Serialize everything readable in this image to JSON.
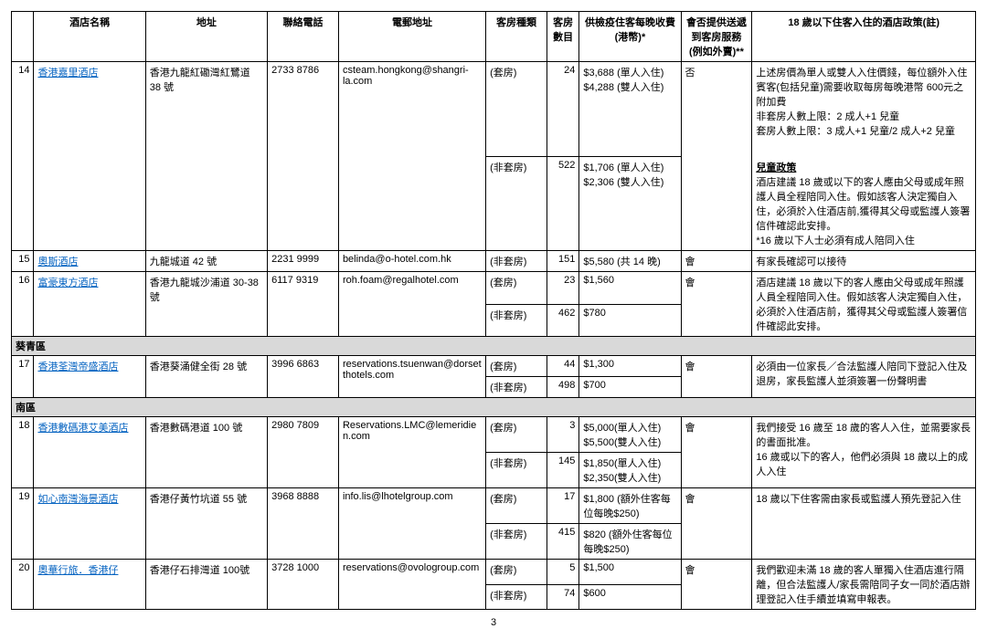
{
  "headers": {
    "num": "",
    "name": "酒店名稱",
    "address": "地址",
    "phone": "聯絡電話",
    "email": "電郵地址",
    "roomtype": "客房種類",
    "roomcount": "客房數目",
    "fee": "供檢疫住客每晚收費(港幣)*",
    "delivery": "會否提供送遞到客房服務(例如外賣)**",
    "policy": "18 歲以下住客入住的酒店政策(註)"
  },
  "districts": {
    "kwaitsing": "葵青區",
    "southern": "南區"
  },
  "rows": [
    {
      "num": "14",
      "name": "香港嘉里酒店",
      "address": "香港九龍紅磡灣紅鷺道 38 號",
      "phone": "2733 8786",
      "email": "csteam.hongkong@shangri-la.com",
      "roomtype1": "(套房)",
      "roomcount1": "24",
      "fee1": "$3,688 (單人入住)\n$4,288 (雙人入住)",
      "roomtype2": "(非套房)",
      "roomcount2": "522",
      "fee2": "$1,706 (單人入住)\n$2,306 (雙人入住)",
      "delivery": "否",
      "policy": "上述房價為單人或雙人入住價錢，每位額外入住賓客(包括兒童)需要收取每房每晚港幣 600元之附加費\n非套房人數上限：2 成人+1 兒童\n套房人數上限：3 成人+1 兒童/2 成人+2 兒童\n\n兒童政策\n酒店建議 18 歲或以下的客人應由父母或成年照護人員全程陪同入住。假如該客人決定獨自入住，必須於入住酒店前,獲得其父母或監護人簽署信件確認此安排。\n*16 歲以下人士必須有成人陪同入住"
    },
    {
      "num": "15",
      "name": "奧斯酒店",
      "address": "九龍城道 42 號",
      "phone": "2231 9999",
      "email": "belinda@o-hotel.com.hk",
      "roomtype1": "(非套房)",
      "roomcount1": "151",
      "fee1": "$5,580 (共 14 晚)",
      "delivery": "會",
      "policy": "有家長確認可以接待"
    },
    {
      "num": "16",
      "name": "富豪東方酒店",
      "address": "香港九龍城沙浦道 30-38 號",
      "phone": "6117 9319",
      "email": "roh.foam@regalhotel.com",
      "roomtype1": "(套房)",
      "roomcount1": "23",
      "fee1": "$1,560",
      "roomtype2": "(非套房)",
      "roomcount2": "462",
      "fee2": "$780",
      "delivery": "會",
      "policy": "酒店建議 18 歲以下的客人應由父母或成年照護人員全程陪同入住。假如該客人決定獨自入住，必須於入住酒店前，獲得其父母或監護人簽署信件確認此安排。"
    },
    {
      "num": "17",
      "name": "香港荃灣帝盛酒店",
      "address": "香港葵涌健全街 28 號",
      "phone": "3996 6863",
      "email": "reservations.tsuenwan@dorsetthotels.com",
      "roomtype1": "(套房)",
      "roomcount1": "44",
      "fee1": "$1,300",
      "roomtype2": "(非套房)",
      "roomcount2": "498",
      "fee2": "$700",
      "delivery": "會",
      "policy": "必須由一位家長／合法監護人陪同下登記入住及退房，家長監護人並須簽署一份聲明書"
    },
    {
      "num": "18",
      "name": "香港數碼港艾美酒店",
      "address": "香港數碼港道 100 號",
      "phone": "2980 7809",
      "email": "Reservations.LMC@lemeridien.com",
      "roomtype1": "(套房)",
      "roomcount1": "3",
      "fee1": "$5,000(單人入住)\n$5,500(雙人入住)",
      "roomtype2": "(非套房)",
      "roomcount2": "145",
      "fee2": "$1,850(單人入住)\n$2,350(雙人入住)",
      "delivery": "會",
      "policy": "我們接受 16 歲至 18 歲的客人入住，並需要家長的書面批准。\n16 歲或以下的客人，他們必須與 18 歲以上的成人入住"
    },
    {
      "num": "19",
      "name": "如心南灣海景酒店",
      "address": "香港仔黃竹坑道 55 號",
      "phone": "3968 8888",
      "email": "info.lis@lhotelgroup.com",
      "roomtype1": "(套房)",
      "roomcount1": "17",
      "fee1": "$1,800 (額外住客每位每晚$250)",
      "roomtype2": "(非套房)",
      "roomcount2": "415",
      "fee2": "$820 (額外住客每位每晚$250)",
      "delivery": "會",
      "policy": "18 歲以下住客需由家長或監護人預先登記入住"
    },
    {
      "num": "20",
      "name": "奧華行旅．香港仔",
      "address": "香港仔石排灣道 100號",
      "phone": "3728 1000",
      "email": "reservations@ovologroup.com",
      "roomtype1": "(套房)",
      "roomcount1": "5",
      "fee1": "$1,500",
      "roomtype2": "(非套房)",
      "roomcount2": "74",
      "fee2": "$600",
      "delivery": "會",
      "policy": "我們歡迎未滿 18 歲的客人單獨入住酒店進行隔離，但合法監護人/家長需陪同子女一同於酒店辦理登記入住手續並填寫申報表。"
    }
  ],
  "pageNumber": "3"
}
